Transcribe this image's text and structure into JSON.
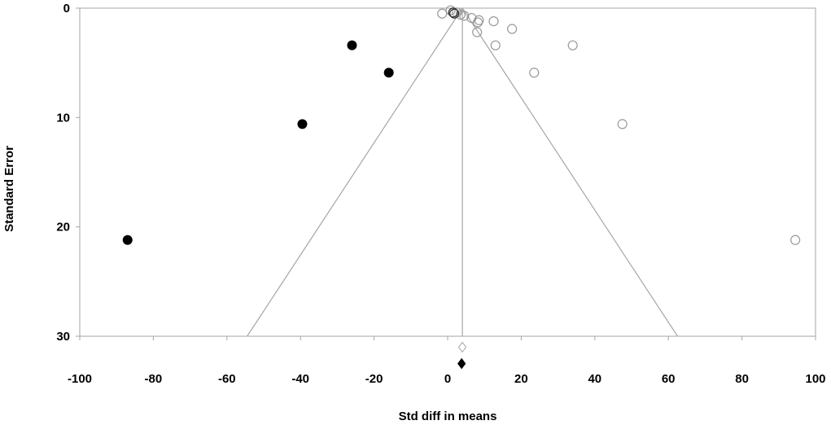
{
  "chart_data": {
    "type": "scatter",
    "title": "",
    "xlabel": "Std diff in means",
    "ylabel": "Standard Error",
    "xlim": [
      -100,
      100
    ],
    "ylim": [
      0,
      30
    ],
    "y_inverted": true,
    "x_ticks": [
      -100,
      -80,
      -60,
      -40,
      -20,
      0,
      20,
      40,
      60,
      80,
      100
    ],
    "y_ticks": [
      0,
      10,
      20,
      30
    ],
    "grid": false,
    "legend": "none",
    "series": [
      {
        "marker": "circle-open",
        "color": "#999999",
        "points": [
          {
            "x": -1.5,
            "y": 0.5
          },
          {
            "x": 0.8,
            "y": 0.2
          },
          {
            "x": 1.5,
            "y": 0.4
          },
          {
            "x": 2.5,
            "y": 0.4
          },
          {
            "x": 3.5,
            "y": 0.6
          },
          {
            "x": 4.5,
            "y": 0.7
          },
          {
            "x": 6.5,
            "y": 0.9
          },
          {
            "x": 8.5,
            "y": 1.1
          },
          {
            "x": 8.2,
            "y": 1.3
          },
          {
            "x": 12.5,
            "y": 1.2
          },
          {
            "x": 17.5,
            "y": 1.9
          },
          {
            "x": 8.0,
            "y": 2.2
          },
          {
            "x": 13.0,
            "y": 3.4
          },
          {
            "x": 34.0,
            "y": 3.4
          },
          {
            "x": 23.5,
            "y": 5.9
          },
          {
            "x": 47.5,
            "y": 10.6
          },
          {
            "x": 94.5,
            "y": 21.2
          }
        ]
      },
      {
        "marker": "circle-open-dark",
        "color": "#333333",
        "points": [
          {
            "x": 1.5,
            "y": 0.4
          },
          {
            "x": 1.8,
            "y": 0.5
          }
        ]
      },
      {
        "marker": "circle-filled",
        "color": "#000000",
        "points": [
          {
            "x": -26.0,
            "y": 3.4
          },
          {
            "x": -16.0,
            "y": 5.9
          },
          {
            "x": -39.5,
            "y": 10.6
          },
          {
            "x": -87.0,
            "y": 21.2
          }
        ]
      }
    ],
    "reference": {
      "line_color": "#a6a6a6",
      "observed_effect": 4.0,
      "funnel_base": [
        -54.5,
        62.5
      ],
      "observed_diamond": {
        "x": 4.0,
        "y": 31.0,
        "fill": "open"
      },
      "adjusted_diamond": {
        "x": 3.8,
        "y": 32.5,
        "fill": "filled"
      }
    }
  }
}
